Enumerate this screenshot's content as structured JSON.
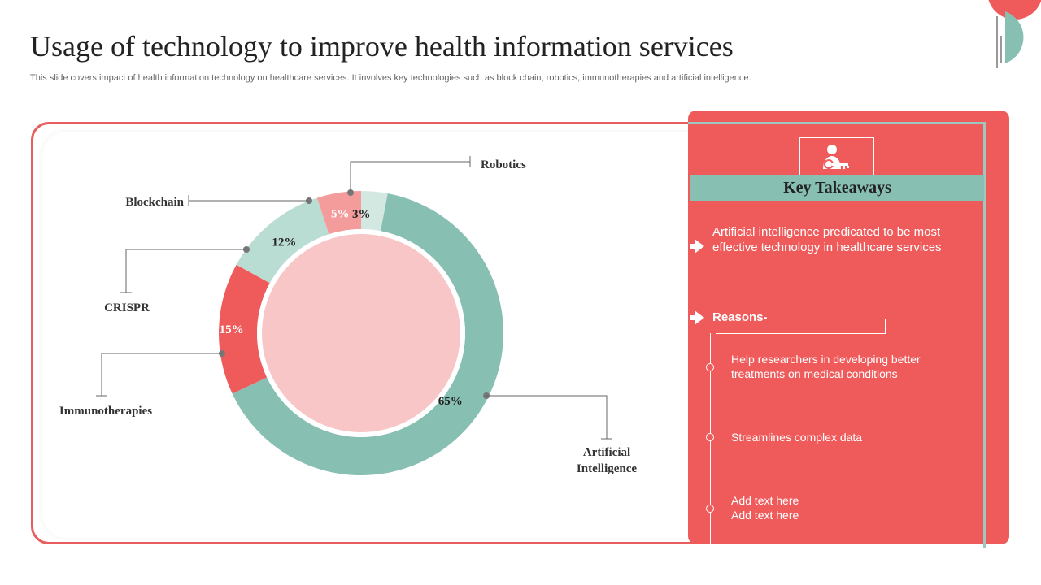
{
  "header": {
    "title": "Usage of technology to improve health information services",
    "subtitle": "This slide covers impact of health information technology on healthcare services. It involves key technologies such as block chain, robotics, immunotherapies and artificial intelligence."
  },
  "colors": {
    "coral": "#ef5b5b",
    "teal": "#87bfb2",
    "light_teal": "#b9dcd3",
    "light_coral": "#f49b9b",
    "pale_teal": "#d4e8e2",
    "center": "#f8c6c6"
  },
  "chart_data": {
    "type": "pie",
    "subtype": "donut",
    "categories": [
      "Robotics",
      "Artificial Intelligence",
      "Immunotherapies",
      "CRISPR",
      "Blockchain"
    ],
    "values": [
      3,
      65,
      15,
      12,
      5
    ],
    "value_labels": [
      "3%",
      "65%",
      "15%",
      "12%",
      "5%"
    ],
    "label_lines": [
      [
        "Robotics"
      ],
      [
        "Artificial",
        "Intelligence"
      ],
      [
        "Immunotherapies"
      ],
      [
        "CRISPR"
      ],
      [
        "Blockchain"
      ]
    ],
    "slice_colors": [
      "#d4e8e2",
      "#87bfb2",
      "#ef5b5b",
      "#b9dcd3",
      "#f49b9b"
    ],
    "value_label_colors": [
      "#222222",
      "#222222",
      "#ffffff",
      "#222222",
      "#ffffff"
    ]
  },
  "takeaways": {
    "icon": "person-key-icon",
    "heading": "Key Takeaways",
    "main_point": "Artificial intelligence predicated to be most effective technology in healthcare services",
    "reasons_label": "Reasons-",
    "reasons": [
      "Help researchers in developing better treatments on medical conditions",
      "Streamlines complex data",
      "Add text here\nAdd text here"
    ]
  }
}
